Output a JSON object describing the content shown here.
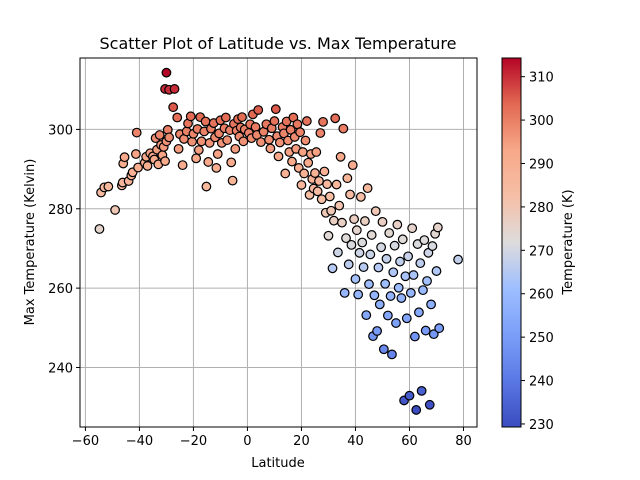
{
  "chart_data": {
    "type": "scatter",
    "title": "Scatter Plot of Latitude vs. Max Temperature",
    "xlabel": "Latitude",
    "ylabel": "Max Temperature (Kelvin)",
    "xlim": [
      -62,
      85
    ],
    "ylim": [
      225,
      318
    ],
    "xticks": [
      -60,
      -40,
      -20,
      0,
      20,
      40,
      60,
      80
    ],
    "yticks": [
      240,
      260,
      280,
      300
    ],
    "grid": true,
    "marker_edge_color": "#000000",
    "colormap": "coolwarm",
    "colorbar": {
      "label": "Temperature (K)",
      "range": [
        229.3,
        314.3
      ],
      "ticks": [
        230,
        240,
        250,
        260,
        270,
        280,
        290,
        300,
        310
      ]
    },
    "points": [
      [
        -54.8,
        274.9
      ],
      [
        -54.2,
        284.1
      ],
      [
        -53.0,
        285.4
      ],
      [
        -51.5,
        285.6
      ],
      [
        -49.0,
        279.7
      ],
      [
        -46.5,
        285.9
      ],
      [
        -46.2,
        286.6
      ],
      [
        -46.0,
        291.4
      ],
      [
        -45.5,
        293.0
      ],
      [
        -44.0,
        287.0
      ],
      [
        -43.0,
        288.4
      ],
      [
        -42.5,
        289.2
      ],
      [
        -41.3,
        293.8
      ],
      [
        -41.0,
        299.2
      ],
      [
        -40.5,
        290.4
      ],
      [
        -38.0,
        291.6
      ],
      [
        -37.5,
        293.1
      ],
      [
        -37.0,
        290.8
      ],
      [
        -36.0,
        294.0
      ],
      [
        -35.0,
        293.2
      ],
      [
        -34.5,
        292.4
      ],
      [
        -34.0,
        297.8
      ],
      [
        -33.5,
        294.9
      ],
      [
        -33.0,
        291.2
      ],
      [
        -32.5,
        298.6
      ],
      [
        -32.0,
        296.1
      ],
      [
        -31.5,
        293.5
      ],
      [
        -31.0,
        295.6
      ],
      [
        -30.5,
        292.0
      ],
      [
        -30.0,
        297.0
      ],
      [
        -29.5,
        299.9
      ],
      [
        -29.0,
        298.0
      ],
      [
        -30.5,
        310.2
      ],
      [
        -30.0,
        314.3
      ],
      [
        -29.0,
        310.0
      ],
      [
        -27.0,
        310.2
      ],
      [
        -27.5,
        305.6
      ],
      [
        -26.0,
        303.0
      ],
      [
        -25.5,
        295.1
      ],
      [
        -25.0,
        298.8
      ],
      [
        -24.0,
        291.0
      ],
      [
        -23.5,
        297.6
      ],
      [
        -22.5,
        299.5
      ],
      [
        -22.0,
        301.5
      ],
      [
        -21.0,
        303.3
      ],
      [
        -20.5,
        296.9
      ],
      [
        -20.0,
        298.9
      ],
      [
        -19.0,
        292.7
      ],
      [
        -18.5,
        300.1
      ],
      [
        -18.0,
        294.8
      ],
      [
        -17.5,
        303.1
      ],
      [
        -17.0,
        297.0
      ],
      [
        -16.0,
        299.5
      ],
      [
        -15.5,
        302.0
      ],
      [
        -15.2,
        285.6
      ],
      [
        -14.5,
        291.8
      ],
      [
        -14.0,
        296.6
      ],
      [
        -13.5,
        300.2
      ],
      [
        -12.5,
        301.6
      ],
      [
        -12.0,
        298.0
      ],
      [
        -11.5,
        290.3
      ],
      [
        -11.0,
        293.8
      ],
      [
        -10.5,
        299.0
      ],
      [
        -10.0,
        302.3
      ],
      [
        -9.5,
        296.6
      ],
      [
        -8.5,
        300.3
      ],
      [
        -8.0,
        303.0
      ],
      [
        -7.5,
        297.3
      ],
      [
        -6.5,
        299.8
      ],
      [
        -6.0,
        291.7
      ],
      [
        -5.5,
        287.1
      ],
      [
        -5.0,
        301.4
      ],
      [
        -4.5,
        295.1
      ],
      [
        -4.0,
        299.7
      ],
      [
        -3.5,
        302.6
      ],
      [
        -3.0,
        298.2
      ],
      [
        -2.5,
        300.5
      ],
      [
        -2.0,
        303.1
      ],
      [
        -1.5,
        297.0
      ],
      [
        -1.0,
        300.0
      ],
      [
        0.5,
        299.1
      ],
      [
        1.0,
        301.3
      ],
      [
        1.5,
        297.8
      ],
      [
        2.0,
        303.8
      ],
      [
        3.0,
        300.6
      ],
      [
        3.5,
        298.6
      ],
      [
        4.0,
        304.9
      ],
      [
        5.0,
        296.8
      ],
      [
        6.0,
        299.4
      ],
      [
        7.0,
        301.3
      ],
      [
        8.0,
        297.4
      ],
      [
        8.5,
        295.2
      ],
      [
        9.0,
        300.3
      ],
      [
        10.0,
        302.1
      ],
      [
        10.5,
        305.1
      ],
      [
        11.0,
        298.3
      ],
      [
        11.5,
        293.2
      ],
      [
        12.0,
        296.7
      ],
      [
        13.0,
        300.6
      ],
      [
        13.5,
        299.0
      ],
      [
        14.0,
        288.9
      ],
      [
        14.5,
        302.0
      ],
      [
        15.0,
        297.2
      ],
      [
        15.5,
        294.3
      ],
      [
        16.0,
        299.9
      ],
      [
        16.5,
        291.9
      ],
      [
        17.0,
        303.0
      ],
      [
        17.5,
        298.1
      ],
      [
        18.0,
        295.1
      ],
      [
        18.5,
        301.3
      ],
      [
        19.0,
        290.3
      ],
      [
        19.5,
        299.3
      ],
      [
        20.0,
        286.0
      ],
      [
        20.5,
        294.3
      ],
      [
        21.0,
        288.9
      ],
      [
        21.5,
        297.2
      ],
      [
        22.0,
        302.1
      ],
      [
        22.5,
        291.6
      ],
      [
        23.0,
        283.5
      ],
      [
        23.5,
        293.8
      ],
      [
        24.0,
        287.5
      ],
      [
        24.5,
        285.1
      ],
      [
        25.0,
        289.0
      ],
      [
        25.5,
        294.3
      ],
      [
        26.0,
        284.4
      ],
      [
        26.5,
        287.0
      ],
      [
        27.0,
        299.1
      ],
      [
        27.5,
        282.4
      ],
      [
        28.0,
        301.9
      ],
      [
        28.5,
        289.4
      ],
      [
        29.0,
        279.0
      ],
      [
        29.5,
        286.2
      ],
      [
        30.0,
        273.2
      ],
      [
        30.5,
        283.1
      ],
      [
        31.0,
        279.5
      ],
      [
        31.5,
        265.0
      ],
      [
        32.0,
        277.0
      ],
      [
        32.5,
        302.8
      ],
      [
        33.0,
        286.1
      ],
      [
        33.5,
        269.0
      ],
      [
        34.0,
        280.8
      ],
      [
        34.5,
        293.1
      ],
      [
        35.0,
        276.5
      ],
      [
        35.5,
        300.2
      ],
      [
        36.0,
        258.8
      ],
      [
        36.5,
        272.6
      ],
      [
        37.0,
        287.7
      ],
      [
        37.5,
        266.0
      ],
      [
        38.0,
        283.6
      ],
      [
        38.5,
        270.9
      ],
      [
        39.0,
        291.0
      ],
      [
        39.5,
        277.4
      ],
      [
        40.0,
        262.3
      ],
      [
        40.5,
        274.6
      ],
      [
        41.0,
        258.4
      ],
      [
        41.5,
        268.9
      ],
      [
        42.0,
        283.0
      ],
      [
        42.5,
        271.5
      ],
      [
        43.0,
        265.3
      ],
      [
        43.5,
        276.9
      ],
      [
        44.0,
        253.2
      ],
      [
        44.5,
        285.2
      ],
      [
        45.0,
        261.0
      ],
      [
        45.5,
        268.5
      ],
      [
        46.0,
        273.4
      ],
      [
        46.5,
        247.9
      ],
      [
        47.0,
        258.2
      ],
      [
        47.5,
        279.4
      ],
      [
        48.0,
        249.2
      ],
      [
        48.5,
        265.2
      ],
      [
        49.0,
        255.9
      ],
      [
        49.5,
        270.3
      ],
      [
        50.0,
        276.7
      ],
      [
        50.5,
        244.6
      ],
      [
        51.0,
        261.1
      ],
      [
        51.5,
        267.4
      ],
      [
        52.0,
        253.1
      ],
      [
        52.5,
        273.9
      ],
      [
        53.0,
        258.0
      ],
      [
        53.5,
        243.3
      ],
      [
        54.0,
        264.0
      ],
      [
        54.5,
        270.7
      ],
      [
        55.0,
        251.2
      ],
      [
        55.5,
        276.0
      ],
      [
        56.0,
        260.1
      ],
      [
        56.5,
        266.7
      ],
      [
        57.0,
        257.5
      ],
      [
        57.5,
        272.3
      ],
      [
        58.0,
        231.7
      ],
      [
        58.5,
        263.0
      ],
      [
        59.0,
        252.4
      ],
      [
        59.5,
        268.0
      ],
      [
        60.0,
        232.9
      ],
      [
        60.5,
        258.8
      ],
      [
        61.0,
        275.1
      ],
      [
        61.5,
        263.3
      ],
      [
        62.0,
        247.8
      ],
      [
        62.5,
        229.3
      ],
      [
        63.0,
        271.1
      ],
      [
        63.5,
        253.9
      ],
      [
        64.0,
        266.3
      ],
      [
        64.5,
        234.1
      ],
      [
        65.0,
        259.5
      ],
      [
        65.5,
        272.1
      ],
      [
        66.0,
        249.3
      ],
      [
        66.5,
        261.8
      ],
      [
        67.0,
        268.9
      ],
      [
        67.5,
        230.6
      ],
      [
        68.0,
        255.9
      ],
      [
        68.5,
        270.6
      ],
      [
        69.0,
        248.4
      ],
      [
        69.5,
        273.7
      ],
      [
        70.0,
        264.3
      ],
      [
        70.5,
        275.3
      ],
      [
        71.0,
        249.9
      ],
      [
        78.0,
        267.2
      ]
    ]
  }
}
